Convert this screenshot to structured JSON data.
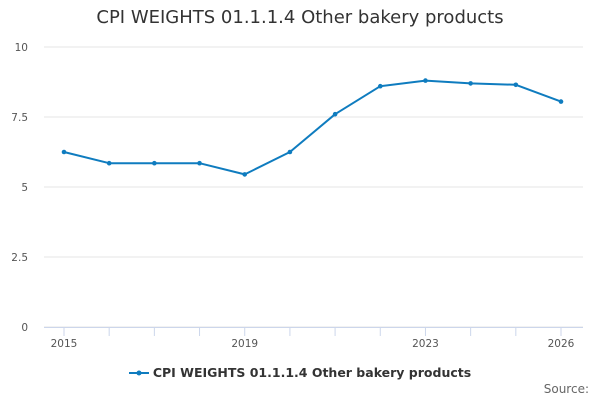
{
  "chart_data": {
    "type": "line",
    "title": "CPI WEIGHTS 01.1.1.4 Other bakery products",
    "xlabel": "",
    "ylabel": "",
    "x": [
      2015,
      2016,
      2017,
      2018,
      2019,
      2020,
      2021,
      2022,
      2023,
      2024,
      2025,
      2026
    ],
    "series": [
      {
        "name": "CPI WEIGHTS 01.1.1.4 Other bakery products",
        "color": "#0f7cbf",
        "values": [
          6.25,
          5.85,
          5.85,
          5.85,
          5.45,
          6.25,
          7.6,
          8.6,
          8.8,
          8.7,
          8.65,
          8.05
        ]
      }
    ],
    "xticks": [
      2015,
      2019,
      2023,
      2026
    ],
    "yticks": [
      "0",
      "2.5",
      "5",
      "7.5",
      "10"
    ],
    "ylim": [
      0,
      10
    ],
    "xlim": [
      2015,
      2026
    ],
    "grid": true,
    "legend_position": "bottom"
  },
  "credits": "Source:"
}
